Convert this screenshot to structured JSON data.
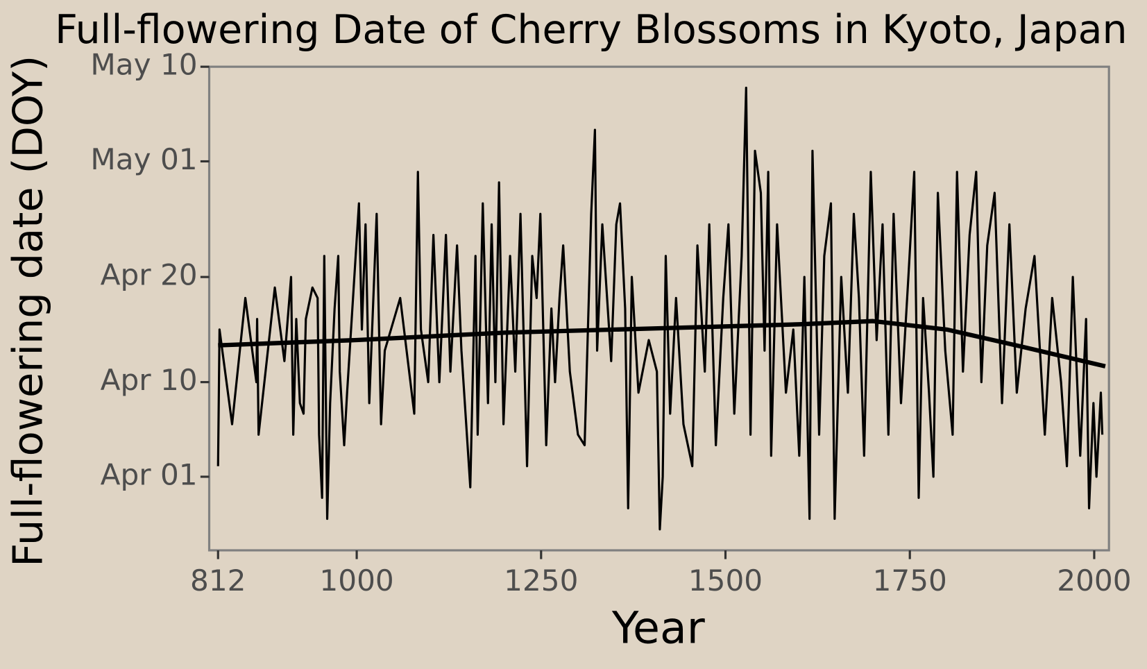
{
  "chart_data": {
    "type": "line",
    "title": "Full-flowering Date of Cherry Blossoms in Kyoto, Japan",
    "x_label": "Year",
    "y_label": "Full-flowering date (DOY)",
    "xlim": [
      800,
      2020
    ],
    "ylim": [
      84,
      130
    ],
    "xticks": [
      812,
      1000,
      1250,
      1500,
      1750,
      2000
    ],
    "yticks": [
      {
        "value": 91,
        "label": "Apr 01"
      },
      {
        "value": 100,
        "label": "Apr 10"
      },
      {
        "value": 110,
        "label": "Apr 20"
      },
      {
        "value": 121,
        "label": "May 01"
      },
      {
        "value": 130,
        "label": "May 10"
      }
    ],
    "series": [
      {
        "color": "#000000",
        "x": [
          812,
          814,
          831,
          849,
          864,
          865,
          867,
          889,
          902,
          911,
          914,
          918,
          923,
          928,
          931,
          940,
          947,
          949,
          953,
          956,
          960,
          964,
          970,
          975,
          977,
          983,
          987,
          1003,
          1007,
          1012,
          1017,
          1027,
          1033,
          1038,
          1059,
          1078,
          1083,
          1087,
          1097,
          1104,
          1112,
          1121,
          1127,
          1136,
          1142,
          1154,
          1161,
          1164,
          1171,
          1178,
          1183,
          1188,
          1193,
          1199,
          1208,
          1215,
          1222,
          1231,
          1238,
          1244,
          1249,
          1257,
          1264,
          1269,
          1275,
          1280,
          1289,
          1300,
          1309,
          1318,
          1323,
          1326,
          1333,
          1345,
          1352,
          1357,
          1364,
          1368,
          1373,
          1382,
          1396,
          1407,
          1411,
          1415,
          1419,
          1425,
          1433,
          1443,
          1455,
          1462,
          1472,
          1478,
          1487,
          1497,
          1504,
          1512,
          1522,
          1528,
          1534,
          1540,
          1548,
          1553,
          1558,
          1562,
          1570,
          1582,
          1592,
          1600,
          1607,
          1614,
          1618,
          1627,
          1634,
          1643,
          1648,
          1657,
          1666,
          1674,
          1681,
          1688,
          1697,
          1705,
          1713,
          1721,
          1728,
          1738,
          1748,
          1756,
          1762,
          1768,
          1776,
          1782,
          1788,
          1798,
          1808,
          1814,
          1822,
          1831,
          1840,
          1847,
          1855,
          1865,
          1875,
          1885,
          1895,
          1907,
          1919,
          1933,
          1943,
          1955,
          1963,
          1971,
          1981,
          1989,
          1993,
          1999,
          2003,
          2009,
          2011
        ],
        "values": [
          92,
          105,
          96,
          108,
          100,
          106,
          95,
          109,
          102,
          110,
          95,
          106,
          98,
          97,
          106,
          109,
          108,
          95,
          89,
          112,
          87,
          98,
          107,
          112,
          101,
          94,
          99,
          117,
          105,
          115,
          98,
          116,
          96,
          103,
          108,
          97,
          120,
          105,
          100,
          114,
          100,
          114,
          101,
          113,
          103,
          90,
          112,
          95,
          117,
          98,
          115,
          100,
          119,
          96,
          112,
          101,
          116,
          92,
          112,
          108,
          116,
          94,
          107,
          100,
          108,
          113,
          101,
          95,
          94,
          116,
          124,
          103,
          115,
          102,
          115,
          117,
          107,
          88,
          110,
          99,
          104,
          101,
          86,
          91,
          112,
          97,
          108,
          96,
          92,
          113,
          101,
          115,
          94,
          108,
          115,
          97,
          112,
          128,
          95,
          122,
          118,
          103,
          120,
          93,
          115,
          99,
          105,
          93,
          110,
          87,
          122,
          95,
          112,
          117,
          87,
          110,
          99,
          116,
          108,
          93,
          120,
          104,
          115,
          95,
          116,
          98,
          110,
          120,
          89,
          108,
          99,
          91,
          118,
          103,
          95,
          120,
          101,
          114,
          120,
          100,
          113,
          118,
          98,
          115,
          99,
          107,
          112,
          95,
          108,
          100,
          92,
          110,
          93,
          106,
          88,
          98,
          91,
          99,
          95
        ]
      },
      {
        "color": "#000000",
        "x": [
          812,
          1000,
          1200,
          1400,
          1600,
          1700,
          1800,
          1900,
          2015
        ],
        "values": [
          103.5,
          104.0,
          104.7,
          105.1,
          105.5,
          105.8,
          105.0,
          103.4,
          101.5
        ]
      }
    ]
  }
}
